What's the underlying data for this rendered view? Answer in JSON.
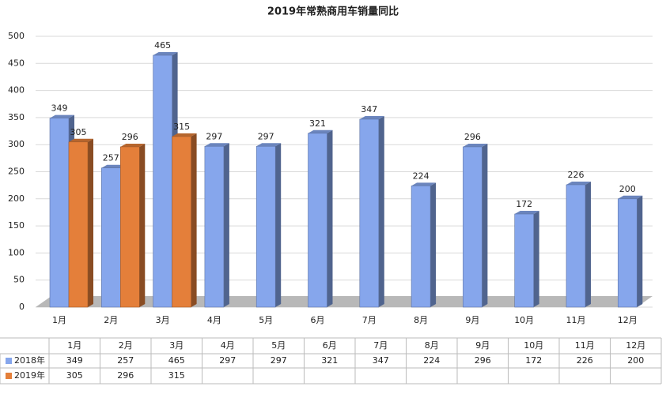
{
  "chart_data": {
    "type": "bar",
    "title": "2019年常熟商用车销量同比",
    "categories": [
      "1月",
      "2月",
      "3月",
      "4月",
      "5月",
      "6月",
      "7月",
      "8月",
      "9月",
      "10月",
      "11月",
      "12月"
    ],
    "series": [
      {
        "name": "2018年",
        "color": "#86a6ec",
        "values": [
          349,
          257,
          465,
          297,
          297,
          321,
          347,
          224,
          296,
          172,
          226,
          200
        ]
      },
      {
        "name": "2019年",
        "color": "#e47f3a",
        "values": [
          305,
          296,
          315,
          null,
          null,
          null,
          null,
          null,
          null,
          null,
          null,
          null
        ]
      }
    ],
    "ylim": [
      0,
      500
    ],
    "yticks": [
      0,
      50,
      100,
      150,
      200,
      250,
      300,
      350,
      400,
      450,
      500
    ],
    "grid": true
  }
}
